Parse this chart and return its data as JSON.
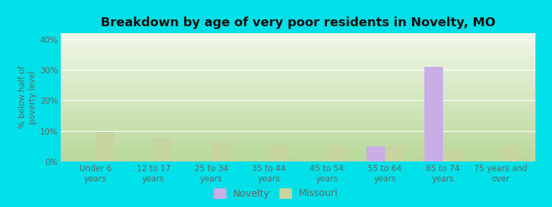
{
  "title": "Breakdown by age of very poor residents in Novelty, MO",
  "ylabel": "% below half of\npoverty level",
  "categories": [
    "Under 6\nyears",
    "12 to 17\nyears",
    "25 to 34\nyears",
    "35 to 44\nyears",
    "45 to 54\nyears",
    "55 to 64\nyears",
    "65 to 74\nyears",
    "75 years and\nover"
  ],
  "novelty_values": [
    0,
    0,
    0,
    0,
    0,
    5,
    31,
    0
  ],
  "missouri_values": [
    9.8,
    7.5,
    6.8,
    5.5,
    5.2,
    5.3,
    4.0,
    5.2
  ],
  "novelty_color": "#c9aee5",
  "missouri_color": "#c8d4a0",
  "ylim": [
    0,
    42
  ],
  "yticks": [
    0,
    10,
    20,
    30,
    40
  ],
  "ytick_labels": [
    "0%",
    "10%",
    "20%",
    "30%",
    "40%"
  ],
  "bar_width": 0.32,
  "outer_background": "#00e0e8",
  "bg_bottom_color": "#b8d898",
  "bg_top_color": "#f0f6e8",
  "title_fontsize": 13,
  "axis_fontsize": 8.5,
  "legend_fontsize": 10,
  "grid_color": "#d8e8c8",
  "tick_label_color": "#666666",
  "title_color": "#111111",
  "ylabel_color": "#666666"
}
